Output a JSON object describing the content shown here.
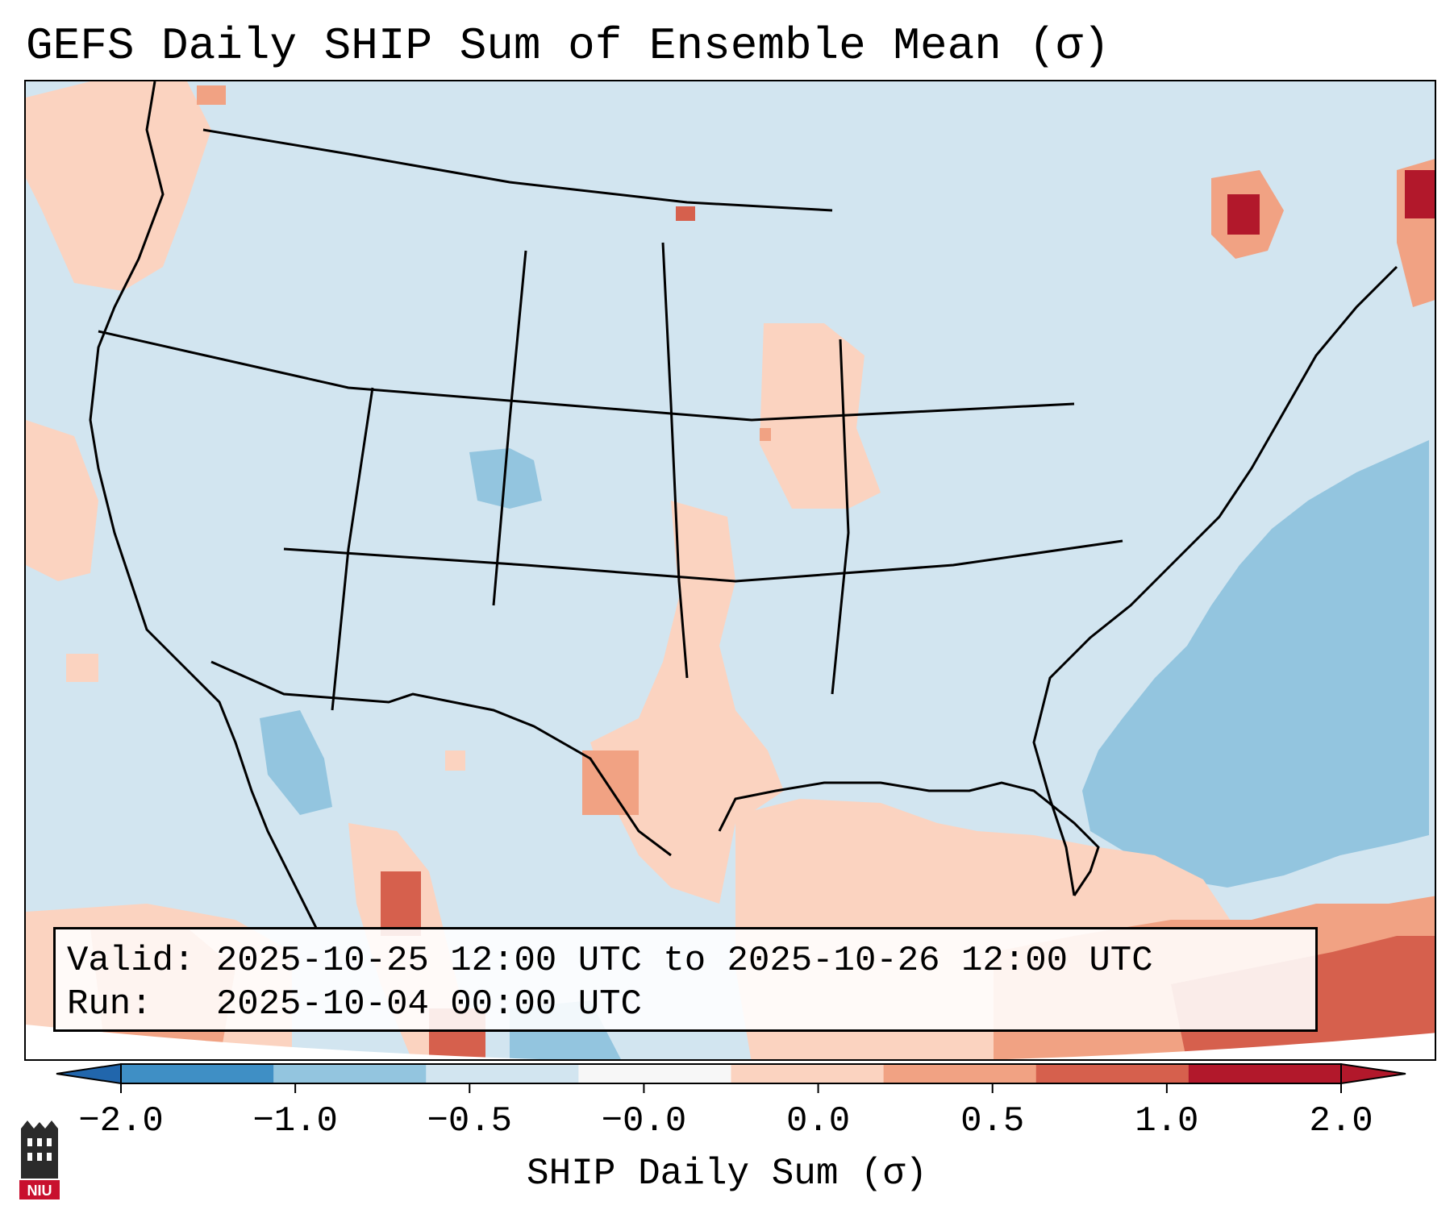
{
  "title": "GEFS Daily SHIP Sum of Ensemble Mean (σ)",
  "info": {
    "valid": "Valid: 2025-10-25 12:00 UTC to 2025-10-26 12:00 UTC",
    "run": "Run:   2025-10-04 00:00 UTC"
  },
  "colorbar": {
    "label": "SHIP Daily Sum (σ)",
    "ticks": [
      "−2.0",
      "−1.0",
      "−0.5",
      "−0.0",
      "0.0",
      "0.5",
      "1.0",
      "2.0"
    ],
    "colors": [
      "#3f8fc5",
      "#93c5df",
      "#d2e5f0",
      "#f7f7f7",
      "#fbd3c0",
      "#f1a283",
      "#d6604d",
      "#b2182b"
    ],
    "extend_low_color": "#2166ac",
    "extend_high_color": "#b2182b"
  },
  "map": {
    "projection": "Lambert Conformal (CONUS)",
    "background_category_color": "#d2e5f0"
  },
  "logo": {
    "text": "NIU"
  }
}
